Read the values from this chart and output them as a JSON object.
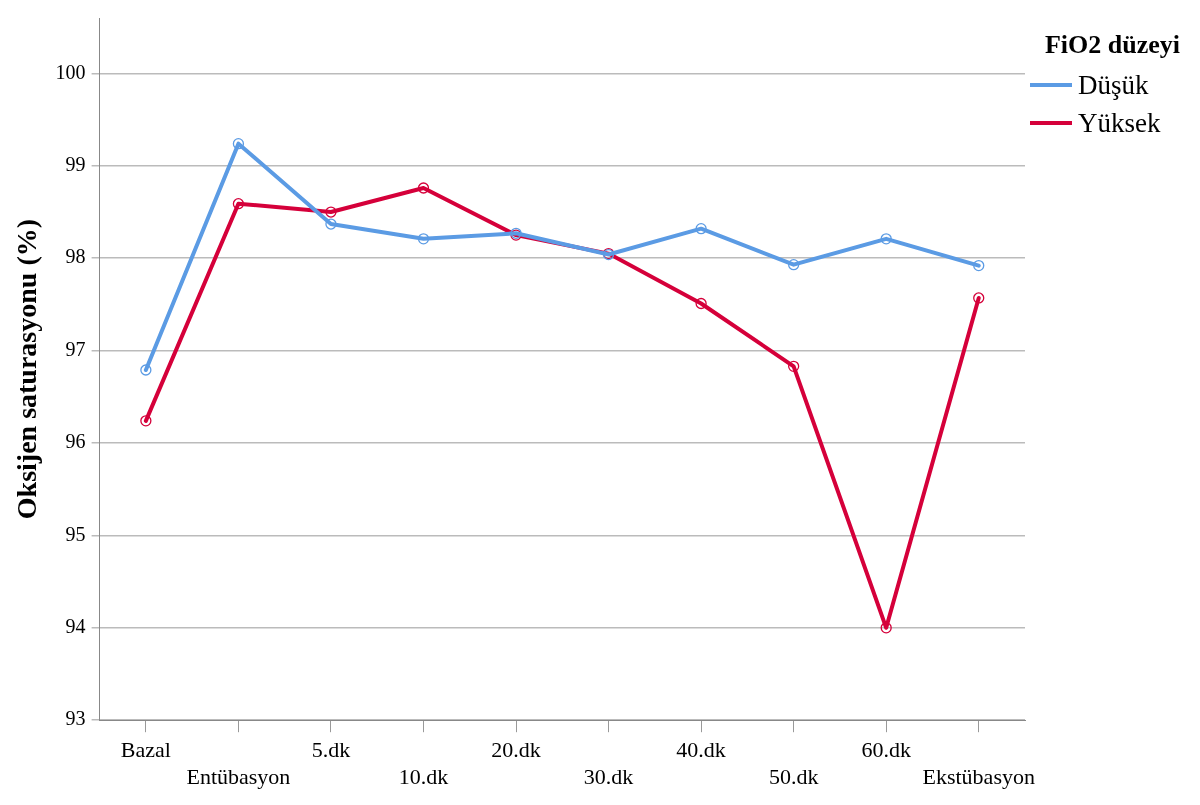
{
  "chart_data": {
    "type": "line",
    "ylabel": "Oksijen saturasyonu (%)",
    "legend_title": "FiO2 düzeyi",
    "categories": [
      "Bazal",
      "Entübasyon",
      "5.dk",
      "10.dk",
      "20.dk",
      "30.dk",
      "40.dk",
      "50.dk",
      "60.dk",
      "Ekstübasyon"
    ],
    "series": [
      {
        "name": "Düşük",
        "color": "#5b9be4",
        "values": [
          96.79,
          99.24,
          98.37,
          98.21,
          98.27,
          98.04,
          98.32,
          97.93,
          98.21,
          97.92
        ]
      },
      {
        "name": "Yüksek",
        "color": "#d5003a",
        "values": [
          96.24,
          98.59,
          98.5,
          98.76,
          98.25,
          98.05,
          97.51,
          96.83,
          94.0,
          97.57
        ]
      }
    ],
    "ylim": [
      93,
      100.6
    ],
    "yticks": [
      93,
      94,
      95,
      96,
      97,
      98,
      99,
      100
    ],
    "grid": "y",
    "legend": "top right",
    "marker": "circle",
    "line_style": "solid"
  }
}
